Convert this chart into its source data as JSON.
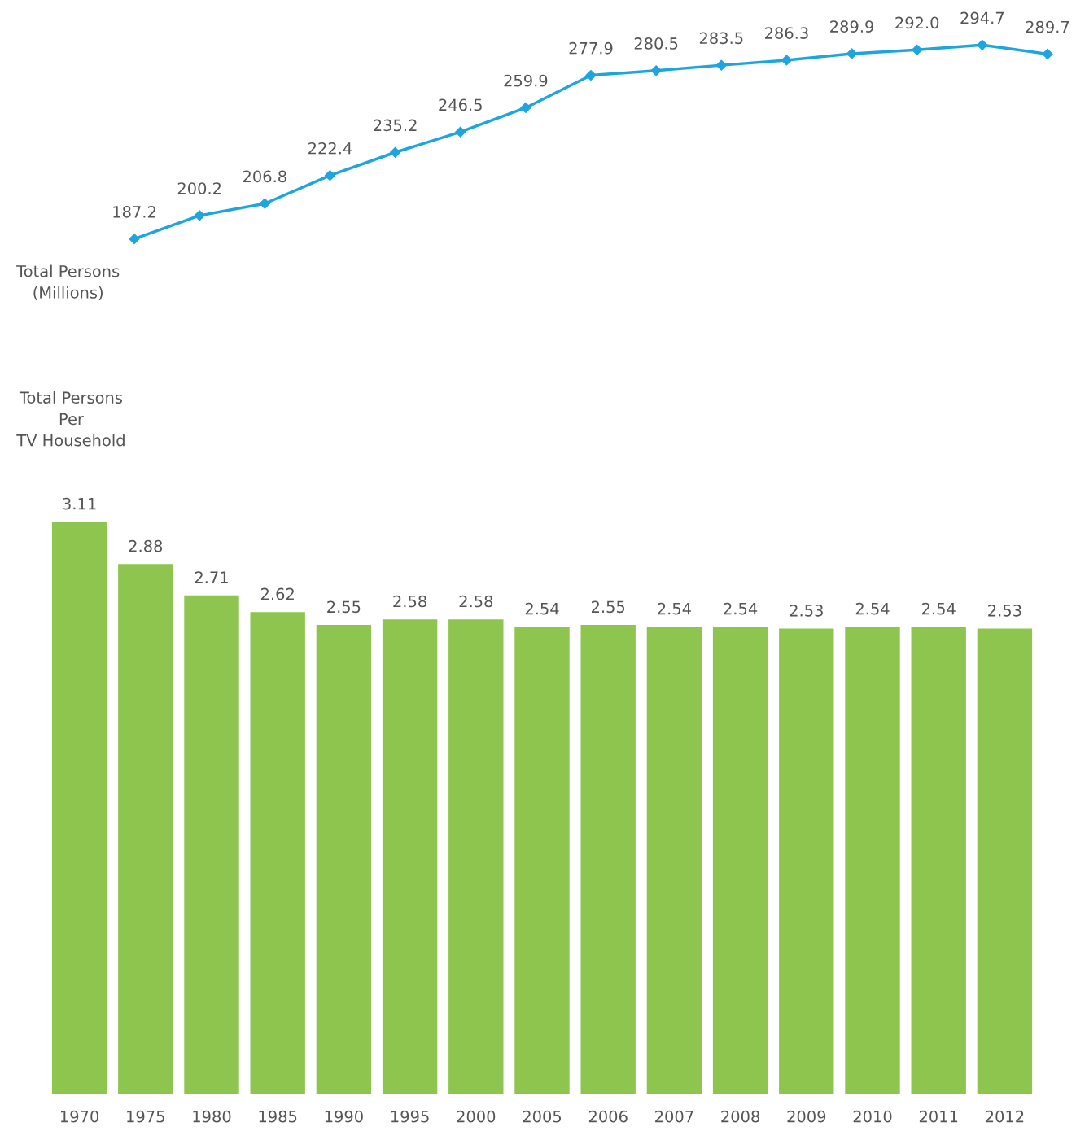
{
  "chart_data": [
    {
      "type": "line",
      "ylabel": "Total Persons\n(Millions)",
      "categories": [
        null,
        null,
        null,
        null,
        null,
        null,
        null,
        null,
        null,
        null,
        null,
        null,
        null,
        null,
        null
      ],
      "values": [
        187.2,
        200.2,
        206.8,
        222.4,
        235.2,
        246.5,
        259.9,
        277.9,
        280.5,
        283.5,
        286.3,
        289.9,
        292.0,
        294.7,
        289.7
      ],
      "value_labels": [
        "187.2",
        "200.2",
        "206.8",
        "222.4",
        "235.2",
        "246.5",
        "259.9",
        "277.9",
        "280.5",
        "283.5",
        "286.3",
        "289.9",
        "292.0",
        "294.7",
        "289.7"
      ],
      "color": "#1ea5dd",
      "marker": "diamond",
      "line_style": "solid",
      "tick_labels": false
    },
    {
      "type": "bar",
      "ylabel": "Total Persons\nPer\nTV Household",
      "categories": [
        "1970",
        "1975",
        "1980",
        "1985",
        "1990",
        "1995",
        "2000",
        "2005",
        "2006",
        "2007",
        "2008",
        "2009",
        "2010",
        "2011",
        "2012"
      ],
      "values": [
        3.11,
        2.88,
        2.71,
        2.62,
        2.55,
        2.58,
        2.58,
        2.54,
        2.55,
        2.54,
        2.54,
        2.53,
        2.54,
        2.54,
        2.53
      ],
      "color": "#8dc54f",
      "data_labels": true,
      "tick_labels": "x"
    }
  ]
}
